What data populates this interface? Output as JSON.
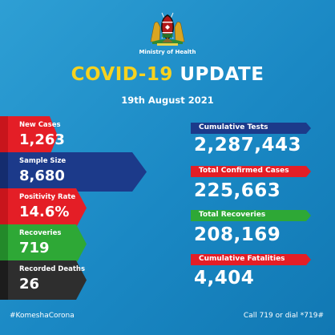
{
  "header": {
    "ministry": "Ministry of Health",
    "title_part1": "COVID-19",
    "title_part2": "UPDATE",
    "date": "19th August 2021"
  },
  "left_stats": [
    {
      "label": "New Cases",
      "value": "1,263",
      "color": "#e41e26",
      "icon": "arrow-tab"
    },
    {
      "label": "Sample Size",
      "value": "8,680",
      "color": "#1c3a8a",
      "icon": "arrow-tab"
    },
    {
      "label": "Positivity Rate",
      "value": "14.6%",
      "color": "#e41e26",
      "icon": "arrow-tab"
    },
    {
      "label": "Recoveries",
      "value": "719",
      "color": "#2ea836",
      "icon": "arrow-tab"
    },
    {
      "label": "Recorded Deaths",
      "value": "26",
      "color": "#2e2e2e",
      "icon": "arrow-tab"
    }
  ],
  "right_stats": [
    {
      "label": "Cumulative Tests",
      "value": "2,287,443",
      "color": "#1c3a8a"
    },
    {
      "label": "Total Confirmed Cases",
      "value": "225,663",
      "color": "#e41e26"
    },
    {
      "label": "Total Recoveries",
      "value": "208,169",
      "color": "#2ea836"
    },
    {
      "label": "Cumulative Fatalities",
      "value": "4,404",
      "color": "#e41e26"
    }
  ],
  "footer": {
    "hashtag": "#KomeshaCorona",
    "call": "Call 719 or dial *719#"
  },
  "colors": {
    "background": "#1a88c4",
    "title_accent": "#f7d21f"
  },
  "crest_icon": "kenya-coat-of-arms-icon"
}
